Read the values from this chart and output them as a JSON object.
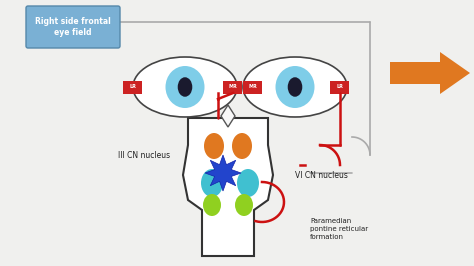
{
  "bg_color": "#f0f0ee",
  "label_box_color": "#7ab0d4",
  "label_box_text": "Right side frontal\neye field",
  "arrow_color": "#e07820",
  "iris_color": "#7ecde8",
  "pupil_color": "#1a1a2e",
  "red_box_color": "#cc2222",
  "orange_circle_color": "#e07820",
  "cyan_circle_color": "#40c0d0",
  "green_circle_color": "#90d020",
  "blue_star_color": "#2244cc",
  "red_line_color": "#cc1111",
  "gray_line_color": "#aaaaaa",
  "text_III_CN": "III CN nucleus",
  "text_VI_CN": "VI CN nucleus",
  "text_PPRF": "Paramedian\npontine reticular\nformation"
}
